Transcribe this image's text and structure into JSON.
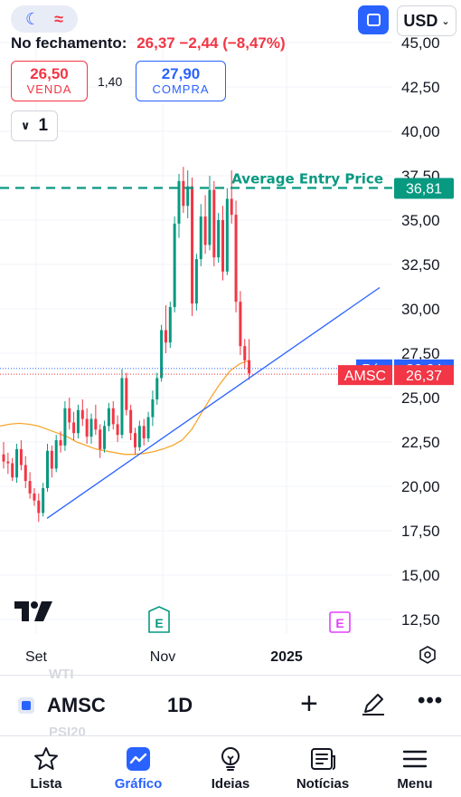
{
  "header": {
    "theme_pill": {
      "moon_icon": "moon-icon",
      "wave_icon": "approx-icon"
    },
    "layout_icon": "layout-icon",
    "currency": "USD",
    "close_label": "No fechamento:",
    "close_value": "26,37 −2,44 (−8,47%)"
  },
  "trade": {
    "sell_price": "26,50",
    "sell_label": "VENDA",
    "spread": "1,40",
    "buy_price": "27,90",
    "buy_label": "COMPRA",
    "quantity": "1"
  },
  "colors": {
    "up": "#089981",
    "down": "#f23645",
    "accent": "#2962ff",
    "ma": "#f7a731",
    "entry": "#089981"
  },
  "chart_data": {
    "type": "candlestick",
    "y_ticks": [
      "45,00",
      "42,50",
      "40,00",
      "37,50",
      "35,00",
      "32,50",
      "30,00",
      "27,50",
      "25,00",
      "22,50",
      "20,00",
      "17,50",
      "15,00",
      "12,50"
    ],
    "x_ticks": [
      "Set",
      "Nov",
      "2025"
    ],
    "ylim": [
      12.5,
      45
    ],
    "grid": true,
    "candles": [
      [
        21.8,
        22.5,
        21.0,
        21.4
      ],
      [
        21.4,
        21.9,
        20.7,
        21.3
      ],
      [
        21.3,
        21.6,
        20.3,
        20.5
      ],
      [
        20.5,
        22.4,
        20.2,
        22.1
      ],
      [
        22.1,
        22.6,
        20.9,
        21.2
      ],
      [
        21.2,
        21.7,
        19.9,
        20.3
      ],
      [
        20.3,
        20.8,
        19.3,
        19.6
      ],
      [
        19.6,
        19.9,
        18.9,
        19.2
      ],
      [
        19.2,
        19.6,
        18.0,
        18.5
      ],
      [
        18.5,
        20.2,
        18.3,
        19.9
      ],
      [
        19.9,
        22.4,
        19.7,
        22.0
      ],
      [
        22.0,
        22.3,
        20.5,
        21.0
      ],
      [
        21.0,
        22.9,
        20.8,
        22.6
      ],
      [
        22.6,
        23.1,
        21.9,
        22.3
      ],
      [
        22.3,
        24.8,
        22.0,
        24.4
      ],
      [
        24.4,
        25.0,
        23.2,
        23.6
      ],
      [
        23.6,
        24.2,
        22.6,
        23.0
      ],
      [
        23.0,
        24.6,
        22.7,
        24.3
      ],
      [
        24.3,
        24.9,
        23.4,
        23.8
      ],
      [
        23.8,
        24.4,
        22.4,
        22.8
      ],
      [
        22.8,
        24.1,
        22.4,
        23.8
      ],
      [
        23.8,
        24.6,
        22.9,
        23.2
      ],
      [
        23.2,
        23.5,
        21.6,
        22.1
      ],
      [
        22.1,
        23.7,
        21.9,
        23.4
      ],
      [
        23.4,
        24.7,
        23.1,
        24.4
      ],
      [
        24.4,
        24.8,
        23.2,
        23.5
      ],
      [
        23.5,
        24.0,
        22.5,
        22.9
      ],
      [
        22.9,
        26.6,
        22.7,
        26.1
      ],
      [
        26.1,
        26.4,
        24.0,
        24.3
      ],
      [
        24.3,
        24.6,
        22.6,
        23.0
      ],
      [
        23.0,
        23.3,
        21.8,
        22.2
      ],
      [
        22.2,
        23.7,
        22.0,
        23.4
      ],
      [
        23.4,
        23.8,
        22.3,
        22.7
      ],
      [
        22.7,
        24.2,
        22.5,
        23.9
      ],
      [
        23.9,
        25.4,
        23.4,
        24.9
      ],
      [
        24.9,
        26.4,
        24.6,
        26.1
      ],
      [
        26.1,
        29.1,
        25.9,
        28.8
      ],
      [
        28.8,
        30.2,
        27.5,
        28.1
      ],
      [
        28.1,
        30.4,
        27.8,
        30.1
      ],
      [
        30.1,
        35.2,
        29.8,
        34.8
      ],
      [
        34.8,
        37.6,
        34.0,
        37.2
      ],
      [
        37.2,
        38.0,
        35.4,
        35.8
      ],
      [
        35.8,
        37.8,
        35.1,
        36.9
      ],
      [
        36.9,
        37.4,
        29.6,
        30.3
      ],
      [
        30.3,
        33.1,
        29.9,
        32.8
      ],
      [
        32.8,
        35.9,
        32.4,
        35.2
      ],
      [
        35.2,
        36.4,
        33.1,
        33.6
      ],
      [
        33.6,
        37.5,
        33.3,
        36.7
      ],
      [
        36.7,
        37.2,
        32.4,
        32.9
      ],
      [
        32.9,
        35.4,
        32.6,
        35.0
      ],
      [
        35.0,
        35.8,
        31.6,
        32.1
      ],
      [
        32.1,
        36.8,
        31.9,
        36.2
      ],
      [
        36.2,
        37.8,
        34.8,
        35.3
      ],
      [
        35.3,
        36.1,
        29.8,
        30.4
      ],
      [
        30.4,
        31.0,
        27.4,
        27.9
      ],
      [
        27.9,
        28.3,
        26.6,
        27.1
      ],
      [
        27.1,
        28.3,
        26.0,
        26.37
      ]
    ],
    "moving_average": [
      23.4,
      23.5,
      23.55,
      23.5,
      23.4,
      23.2,
      23.0,
      22.8,
      22.5,
      22.3,
      22.1,
      22.0,
      21.9,
      21.8,
      21.8,
      21.85,
      21.95,
      22.1,
      22.3,
      22.6,
      23.2,
      24.1,
      25.0,
      25.8,
      26.5,
      26.9,
      27.1
    ],
    "trend_line": [
      [
        17.9,
        18.2
      ],
      [
        31.2,
        23.8
      ]
    ],
    "entry_line": {
      "value": 36.81,
      "label": "Average Entry Price",
      "tag": "36,81"
    },
    "position_line": {
      "value": 26.64,
      "label": "Pós",
      "tag": "26,64"
    },
    "last_price_line": {
      "value": 26.37,
      "label": "AMSC",
      "tag": "26,37"
    },
    "earnings_markers": [
      "E",
      "E"
    ]
  },
  "symbol_bar": {
    "ghost_top": "WTI",
    "ghost_bottom": "PSI20",
    "symbol": "AMSC",
    "timeframe": "1D"
  },
  "nav": [
    {
      "label": "Lista",
      "icon": "star-icon"
    },
    {
      "label": "Gráfico",
      "icon": "chart-icon",
      "active": true
    },
    {
      "label": "Ideias",
      "icon": "lightbulb-icon"
    },
    {
      "label": "Notícias",
      "icon": "news-icon"
    },
    {
      "label": "Menu",
      "icon": "menu-icon"
    }
  ]
}
